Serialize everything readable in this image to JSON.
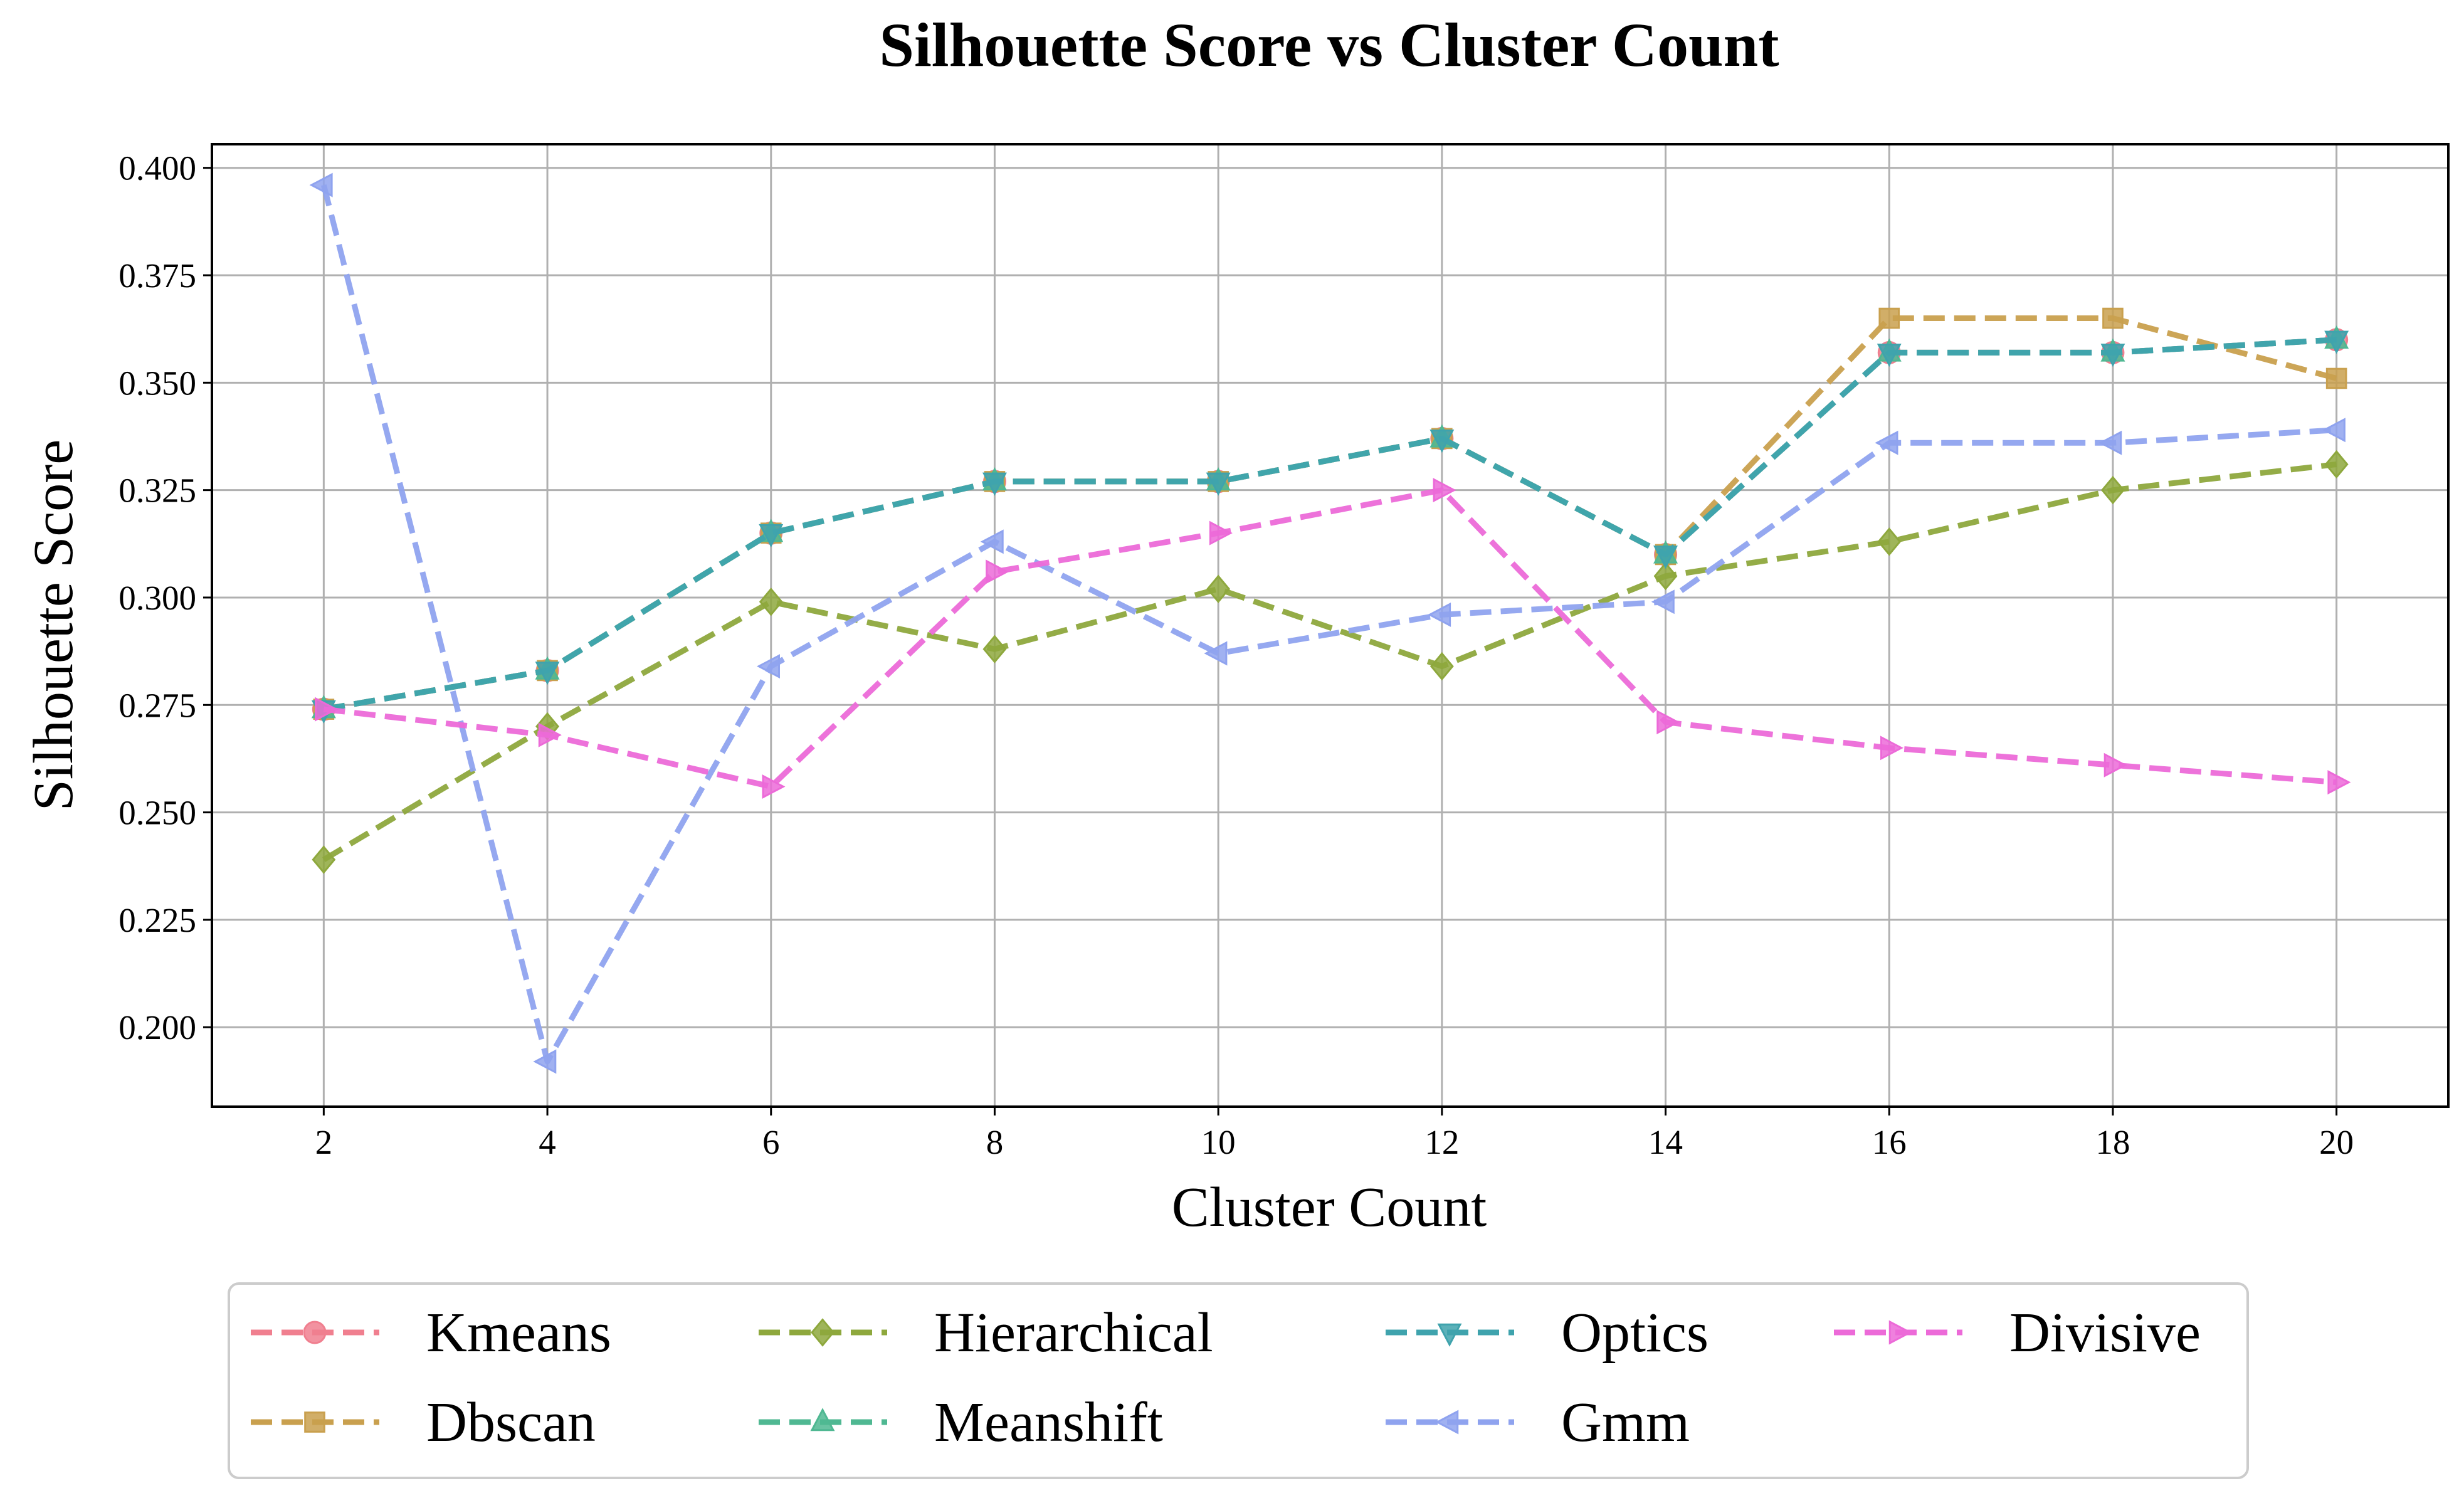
{
  "chart_data": {
    "type": "line",
    "title": "Silhouette Score vs Cluster Count",
    "xlabel": "Cluster Count",
    "ylabel": "Silhouette Score",
    "x": [
      2,
      4,
      6,
      8,
      10,
      12,
      14,
      16,
      18,
      20
    ],
    "xticks": [
      "2",
      "4",
      "6",
      "8",
      "10",
      "12",
      "14",
      "16",
      "18",
      "20"
    ],
    "yticks": [
      "0.200",
      "0.225",
      "0.250",
      "0.275",
      "0.300",
      "0.325",
      "0.350",
      "0.375",
      "0.400"
    ],
    "xlim": [
      1,
      21
    ],
    "ylim": [
      0.1815,
      0.4055
    ],
    "grid": true,
    "legend_position": "bottom-center",
    "series": [
      {
        "name": "Kmeans",
        "color": "#f07f8f",
        "marker": "circle",
        "values": [
          0.274,
          0.283,
          0.315,
          0.327,
          0.327,
          0.337,
          0.31,
          0.357,
          0.357,
          0.36
        ]
      },
      {
        "name": "Dbscan",
        "color": "#c9a04e",
        "marker": "square",
        "values": [
          0.274,
          0.283,
          0.315,
          0.327,
          0.327,
          0.337,
          0.31,
          0.365,
          0.365,
          0.351
        ]
      },
      {
        "name": "Hierarchical",
        "color": "#8ea83d",
        "marker": "diamond",
        "values": [
          0.239,
          0.27,
          0.299,
          0.288,
          0.302,
          0.284,
          0.305,
          0.313,
          0.325,
          0.331
        ]
      },
      {
        "name": "Meanshift",
        "color": "#4fb892",
        "marker": "triangle-up",
        "values": [
          0.274,
          0.283,
          0.315,
          0.327,
          0.327,
          0.337,
          0.31,
          0.357,
          0.357,
          0.36
        ]
      },
      {
        "name": "Optics",
        "color": "#3fa3ad",
        "marker": "triangle-down",
        "values": [
          0.274,
          0.283,
          0.315,
          0.327,
          0.327,
          0.337,
          0.31,
          0.357,
          0.357,
          0.36
        ]
      },
      {
        "name": "Gmm",
        "color": "#8fa3ef",
        "marker": "triangle-left",
        "values": [
          0.396,
          0.192,
          0.284,
          0.313,
          0.287,
          0.296,
          0.299,
          0.336,
          0.336,
          0.339
        ]
      },
      {
        "name": "Divisive",
        "color": "#ec6ad8",
        "marker": "triangle-right",
        "values": [
          0.274,
          0.268,
          0.256,
          0.306,
          0.315,
          0.325,
          0.271,
          0.265,
          0.261,
          0.257
        ]
      }
    ]
  }
}
